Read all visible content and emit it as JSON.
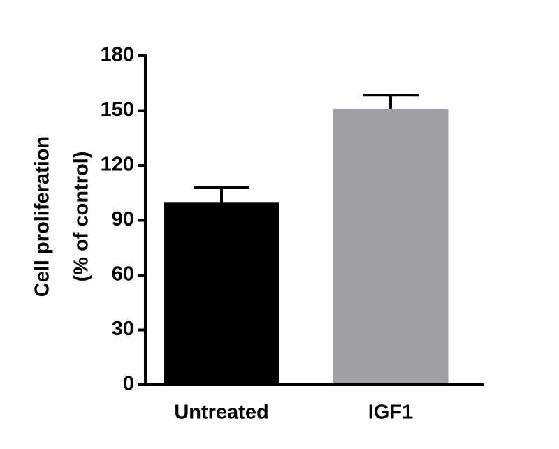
{
  "chart_data": {
    "type": "bar",
    "ylabel": [
      "Cell proliferation",
      "(% of control)"
    ],
    "categories": [
      "Untreated",
      "IGF1"
    ],
    "values": [
      100,
      151
    ],
    "errors": [
      8,
      7.5
    ],
    "colors": [
      "#000000",
      "#a0a0a4"
    ],
    "ylim": [
      0,
      180
    ],
    "yticks": [
      0,
      30,
      60,
      90,
      120,
      150,
      180
    ]
  }
}
